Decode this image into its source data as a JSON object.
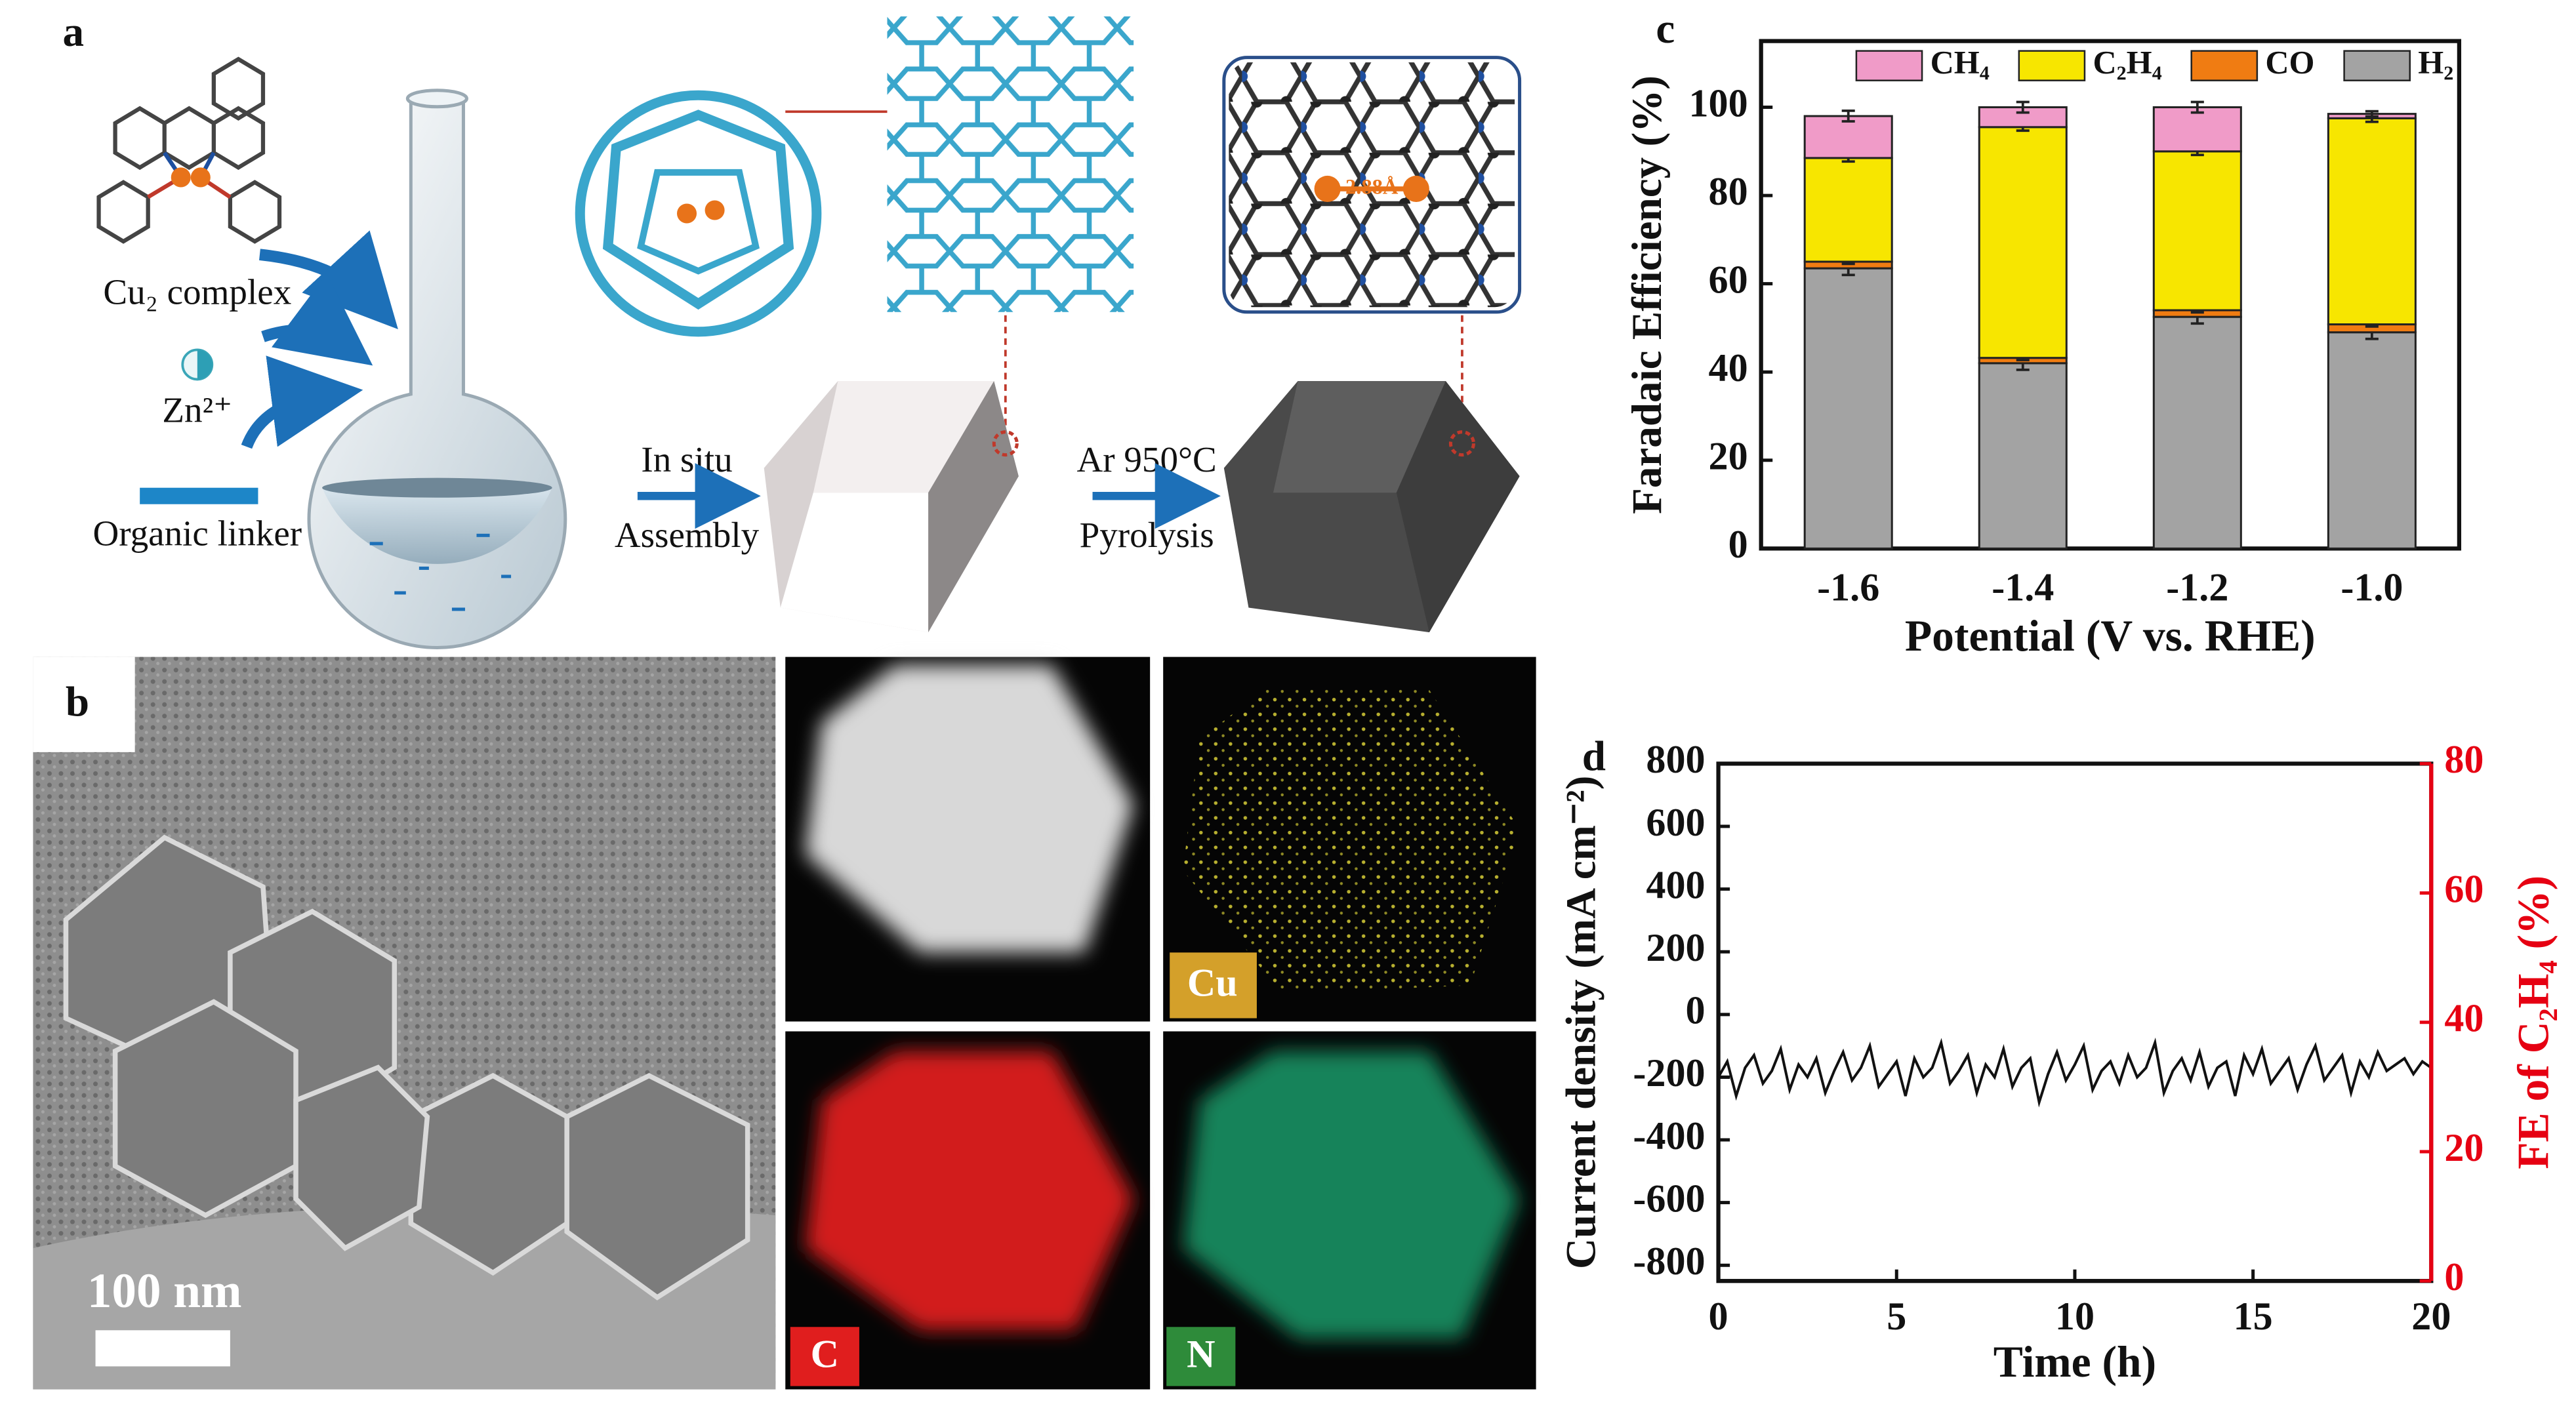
{
  "schematic": {
    "panel_label": "a",
    "complex_label": "Cu₂ complex",
    "ion_label": "Zn²⁺",
    "linker_label": "Organic linker",
    "step1_top": "In situ",
    "step1_bottom": "Assembly",
    "step2_top": "Ar 950°C",
    "step2_bottom": "Pyrolysis",
    "distance_label": "2.88Å"
  },
  "micrographs": {
    "panel_label": "b",
    "scale_label": "100 nm",
    "map_cu": "Cu",
    "map_c": "C",
    "map_n": "N"
  },
  "chart_data": [
    {
      "type": "bar",
      "stacked": true,
      "panel_label": "c",
      "xlabel": "Potential (V vs. RHE)",
      "ylabel": "Faradaic Efficiency (%)",
      "categories": [
        "-1.6",
        "-1.4",
        "-1.2",
        "-1.0"
      ],
      "series": [
        {
          "name": "H₂",
          "color": "#a3a3a3",
          "values": [
            63.5,
            42,
            52.5,
            49
          ],
          "errors": [
            1.5,
            1.5,
            1.5,
            1.5
          ]
        },
        {
          "name": "CO",
          "color": "#f07c12",
          "values": [
            1.5,
            1.2,
            1.5,
            1.8
          ],
          "errors": [
            0.5,
            0.5,
            0.5,
            0.5
          ]
        },
        {
          "name": "C₂H₄",
          "color": "#f7e600",
          "values": [
            23.5,
            52.3,
            36,
            46.7
          ],
          "errors": [
            0.8,
            0.8,
            0.8,
            0.8
          ]
        },
        {
          "name": "CH₄",
          "color": "#f09bc8",
          "values": [
            9.5,
            4.5,
            10,
            1
          ],
          "errors": [
            1.2,
            1.2,
            1.2,
            0.6
          ]
        }
      ],
      "ylim": [
        0,
        115
      ],
      "yticks": [
        0,
        20,
        40,
        60,
        80,
        100
      ],
      "legend": "top"
    },
    {
      "type": "line",
      "panel_label": "d",
      "xlabel": "Time (h)",
      "ylabel": "Current density (mA cm⁻²)",
      "y2label": "FE of C₂H₄ (%)",
      "y2color": "#e60012",
      "x": [
        0,
        0.25,
        0.5,
        0.75,
        1,
        1.25,
        1.5,
        1.75,
        2,
        2.25,
        2.5,
        2.75,
        3,
        3.25,
        3.5,
        3.75,
        4,
        4.25,
        4.5,
        4.75,
        5,
        5.25,
        5.5,
        5.75,
        6,
        6.25,
        6.5,
        6.75,
        7,
        7.25,
        7.5,
        7.75,
        8,
        8.25,
        8.5,
        8.75,
        9,
        9.25,
        9.5,
        9.75,
        10,
        10.25,
        10.5,
        10.75,
        11,
        11.25,
        11.5,
        11.75,
        12,
        12.25,
        12.5,
        12.75,
        13,
        13.25,
        13.5,
        13.75,
        14,
        14.25,
        14.5,
        14.75,
        15,
        15.25,
        15.5,
        15.75,
        16,
        16.25,
        16.5,
        16.75,
        17,
        17.25,
        17.5,
        17.75,
        18,
        18.25,
        18.5,
        18.75,
        19,
        19.25,
        19.5,
        19.75,
        20
      ],
      "series": [
        {
          "name": "Current density",
          "color": "#111111",
          "values": [
            -200,
            -150,
            -260,
            -170,
            -130,
            -220,
            -180,
            -110,
            -240,
            -160,
            -200,
            -140,
            -250,
            -180,
            -120,
            -210,
            -170,
            -100,
            -230,
            -190,
            -150,
            -260,
            -140,
            -200,
            -170,
            -90,
            -220,
            -180,
            -130,
            -250,
            -160,
            -200,
            -110,
            -230,
            -170,
            -140,
            -280,
            -190,
            -120,
            -210,
            -160,
            -100,
            -240,
            -180,
            -150,
            -220,
            -130,
            -200,
            -170,
            -90,
            -250,
            -180,
            -140,
            -210,
            -120,
            -230,
            -170,
            -150,
            -260,
            -130,
            -190,
            -110,
            -220,
            -180,
            -140,
            -240,
            -160,
            -100,
            -210,
            -170,
            -130,
            -250,
            -150,
            -200,
            -120,
            -180,
            -160,
            -140,
            -190,
            -150,
            -170
          ]
        }
      ],
      "xlim": [
        0,
        20
      ],
      "xticks": [
        0,
        5,
        10,
        15,
        20
      ],
      "ylim": [
        -850,
        800
      ],
      "yticks": [
        -800,
        -600,
        -400,
        -200,
        0,
        200,
        400,
        600,
        800
      ],
      "y2lim": [
        0,
        80
      ],
      "y2ticks": [
        0,
        20,
        40,
        60,
        80
      ]
    }
  ]
}
